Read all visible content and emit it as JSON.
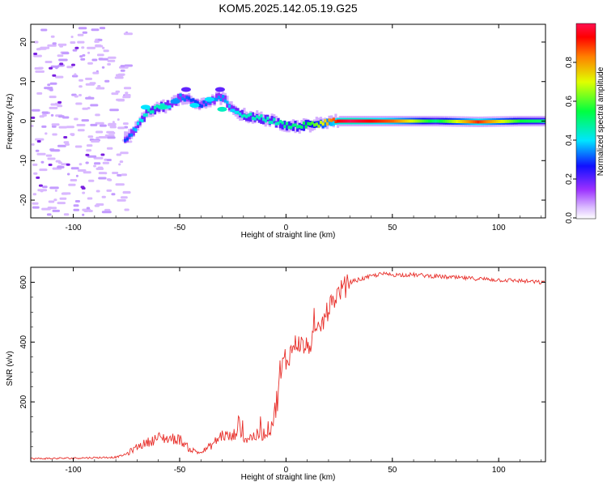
{
  "figure": {
    "title": "KOM5.2025.142.05.19.G25"
  },
  "chart_data": [
    {
      "type": "heatmap",
      "xlabel": "Height of straight line (km)",
      "ylabel": "Frequency (Hz)",
      "xlim": [
        -120,
        122
      ],
      "ylim": [
        -24.5,
        24.5
      ],
      "xticks": [
        -100,
        -50,
        0,
        50,
        100
      ],
      "yticks": [
        -20,
        -10,
        0,
        10,
        20
      ],
      "grid": false,
      "colorbar": {
        "label": "Normalized spectral amplitude",
        "range": [
          0,
          1
        ],
        "ticks": [
          "0.0",
          "0.2",
          "0.4",
          "0.6",
          "0.8"
        ]
      },
      "ridge": {
        "x": [
          -75,
          -70,
          -65,
          -60,
          -55,
          -50,
          -45,
          -40,
          -35,
          -30,
          -25,
          -20,
          -15,
          -10,
          -5,
          0,
          5,
          10,
          15,
          20,
          25,
          30,
          50,
          70,
          90,
          110,
          122
        ],
        "freq": [
          -4.5,
          -1,
          2.5,
          3.5,
          4,
          6,
          5,
          4,
          5.5,
          6,
          2.5,
          1.5,
          1,
          0.5,
          -0.3,
          -1,
          -1.3,
          -1,
          -0.7,
          0,
          0,
          0,
          0,
          0,
          -0.2,
          0,
          0
        ],
        "amplitude": [
          0.3,
          0.4,
          0.45,
          0.45,
          0.4,
          0.35,
          0.3,
          0.3,
          0.35,
          0.35,
          0.4,
          0.45,
          0.45,
          0.45,
          0.45,
          0.5,
          0.5,
          0.55,
          0.65,
          0.8,
          0.95,
          1.0,
          0.85,
          0.5,
          0.9,
          0.55,
          0.5
        ]
      }
    },
    {
      "type": "line",
      "xlabel": "Height of straight line (km)",
      "ylabel": "SNR (v/v)",
      "xlim": [
        -120,
        122
      ],
      "ylim": [
        0,
        650
      ],
      "xticks": [
        -100,
        -50,
        0,
        50,
        100
      ],
      "yticks": [
        200,
        400,
        600
      ],
      "grid": false,
      "series": [
        {
          "color": "#e8302b",
          "x": [
            -120,
            -100,
            -80,
            -75,
            -70,
            -60,
            -50,
            -45,
            -40,
            -35,
            -30,
            -25,
            -22,
            -20,
            -15,
            -10,
            -7,
            -5,
            -3,
            0,
            3,
            5,
            10,
            15,
            20,
            25,
            30,
            40,
            45,
            50,
            60,
            70,
            80,
            90,
            100,
            110,
            122
          ],
          "y": [
            10,
            12,
            15,
            25,
            50,
            80,
            75,
            40,
            30,
            55,
            90,
            80,
            130,
            75,
            85,
            95,
            120,
            170,
            280,
            330,
            380,
            400,
            380,
            430,
            510,
            570,
            600,
            620,
            628,
            625,
            625,
            620,
            615,
            612,
            608,
            605,
            598
          ]
        }
      ]
    }
  ]
}
